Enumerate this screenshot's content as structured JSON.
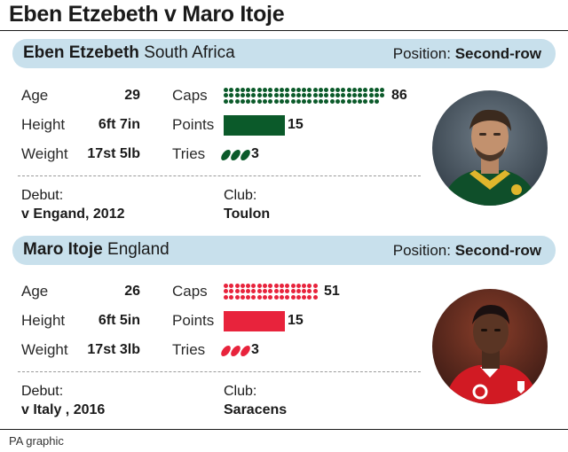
{
  "title": "Eben Etzebeth v Maro Itoje",
  "credit": "PA graphic",
  "labels": {
    "age": "Age",
    "height": "Height",
    "weight": "Weight",
    "caps": "Caps",
    "points": "Points",
    "tries": "Tries",
    "debut": "Debut:",
    "club": "Club:",
    "position": "Position:"
  },
  "players": [
    {
      "first": "Eben Etzebeth",
      "country": "South Africa",
      "position": "Second-row",
      "age": "29",
      "height": "6ft 7in",
      "weight": "17st 5lb",
      "caps": 86,
      "points": 15,
      "tries": 3,
      "debut": "v Engand, 2012",
      "club": "Toulon",
      "color": "#0b5a2a",
      "avatar_icon": "player-photo-etzebeth"
    },
    {
      "first": "Maro Itoje",
      "country": "England",
      "position": "Second-row",
      "age": "26",
      "height": "6ft 5in",
      "weight": "17st 3lb",
      "caps": 51,
      "points": 15,
      "tries": 3,
      "debut": "v Italy , 2016",
      "club": "Saracens",
      "color": "#e8233c",
      "avatar_icon": "player-photo-itoje"
    }
  ]
}
